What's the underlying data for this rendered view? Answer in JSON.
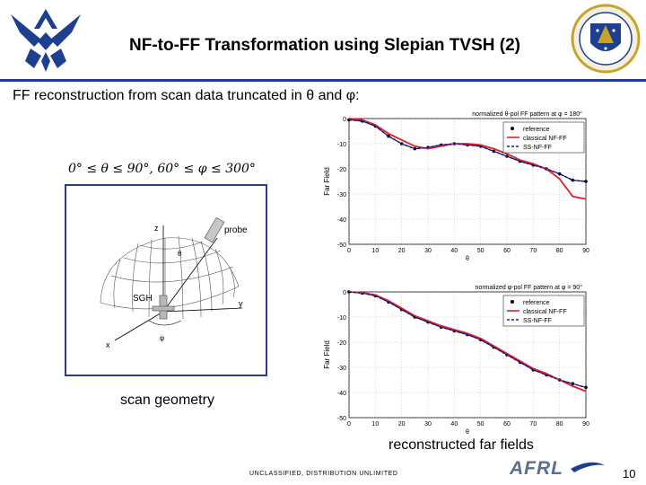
{
  "slide": {
    "title": "NF-to-FF Transformation using Slepian TVSH (2)",
    "subtitle": "FF reconstruction from scan data truncated in θ and φ:",
    "scan_range": "0° ≤ θ ≤ 90°, 60° ≤ φ ≤ 300°",
    "geometry_caption": "scan geometry",
    "farfield_caption": "reconstructed far fields",
    "footer": "UNCLASSIFIED, DISTRIBUTION UNLIMITED",
    "page_number": "10",
    "afrl_logo_text": "AFRL"
  },
  "geometry": {
    "label_z": "z",
    "label_y": "y",
    "label_x": "x",
    "label_probe": "probe",
    "label_sgh": "SGH",
    "label_theta": "θ",
    "label_phi": "φ"
  },
  "colors": {
    "accent": "#1d3f8f",
    "reference": "#000000",
    "classical": "#e0202a",
    "ss": "#1a1aa0"
  },
  "chart_data": [
    {
      "type": "line",
      "title": "normalized θ-pol FF pattern at φ = 180°",
      "xlabel": "θ",
      "ylabel": "Far Field",
      "xlim": [
        0,
        90
      ],
      "ylim": [
        -50,
        0
      ],
      "xticks": [
        0,
        10,
        20,
        30,
        40,
        50,
        60,
        70,
        80,
        90
      ],
      "yticks": [
        0,
        -10,
        -20,
        -30,
        -40,
        -50
      ],
      "grid": true,
      "legend": "top-right",
      "series": [
        {
          "name": "reference",
          "style": "marker",
          "x": [
            0,
            5,
            10,
            15,
            20,
            25,
            30,
            35,
            40,
            45,
            50,
            55,
            60,
            65,
            70,
            75,
            80,
            85,
            90
          ],
          "values": [
            -0.5,
            -1,
            -3,
            -7,
            -10,
            -12,
            -11.5,
            -10.5,
            -10,
            -10.5,
            -11,
            -13,
            -15,
            -17,
            -18.5,
            -20,
            -22,
            -24.5,
            -25
          ]
        },
        {
          "name": "classical NF-FF",
          "style": "solid",
          "x": [
            0,
            5,
            10,
            15,
            20,
            25,
            30,
            35,
            40,
            45,
            50,
            55,
            60,
            65,
            70,
            75,
            80,
            85,
            90
          ],
          "values": [
            0,
            -0.5,
            -2.5,
            -6,
            -8.5,
            -11,
            -12,
            -11,
            -10,
            -10,
            -10.5,
            -12,
            -14,
            -16.5,
            -18,
            -20,
            -24,
            -31,
            -32
          ]
        },
        {
          "name": "SS-NF-FF",
          "style": "dashed",
          "x": [
            0,
            5,
            10,
            15,
            20,
            25,
            30,
            35,
            40,
            45,
            50,
            55,
            60,
            65,
            70,
            75,
            80,
            85,
            90
          ],
          "values": [
            -0.5,
            -1,
            -3,
            -7,
            -10,
            -12,
            -11.5,
            -10.5,
            -10,
            -10.5,
            -11,
            -13,
            -15,
            -17,
            -18.5,
            -20,
            -22,
            -24.5,
            -25
          ]
        }
      ]
    },
    {
      "type": "line",
      "title": "normalized φ-pol FF pattern at φ = 90°",
      "xlabel": "θ",
      "ylabel": "Far Field",
      "xlim": [
        0,
        90
      ],
      "ylim": [
        -50,
        0
      ],
      "xticks": [
        0,
        10,
        20,
        30,
        40,
        50,
        60,
        70,
        80,
        90
      ],
      "yticks": [
        0,
        -10,
        -20,
        -30,
        -40,
        -50
      ],
      "grid": true,
      "legend": "top-right",
      "series": [
        {
          "name": "reference",
          "style": "marker",
          "x": [
            0,
            5,
            10,
            15,
            20,
            25,
            30,
            35,
            40,
            45,
            50,
            55,
            60,
            65,
            70,
            75,
            80,
            85,
            90
          ],
          "values": [
            0,
            -0.5,
            -1.5,
            -4,
            -7,
            -10,
            -12,
            -14,
            -15.5,
            -17,
            -19,
            -22,
            -25,
            -28,
            -31,
            -33,
            -35,
            -36.5,
            -38
          ]
        },
        {
          "name": "classical NF-FF",
          "style": "solid",
          "x": [
            0,
            5,
            10,
            15,
            20,
            25,
            30,
            35,
            40,
            45,
            50,
            55,
            60,
            65,
            70,
            75,
            80,
            85,
            90
          ],
          "values": [
            0,
            -0.3,
            -1.2,
            -3.5,
            -6.5,
            -9.5,
            -11.5,
            -13.5,
            -15,
            -16.5,
            -18.5,
            -21.5,
            -24.5,
            -27.5,
            -30.5,
            -32.5,
            -35,
            -37.5,
            -39.5
          ]
        },
        {
          "name": "SS-NF-FF",
          "style": "dashed",
          "x": [
            0,
            5,
            10,
            15,
            20,
            25,
            30,
            35,
            40,
            45,
            50,
            55,
            60,
            65,
            70,
            75,
            80,
            85,
            90
          ],
          "values": [
            0,
            -0.5,
            -1.5,
            -4,
            -7,
            -10,
            -12,
            -14,
            -15.5,
            -17,
            -19,
            -22,
            -25,
            -28,
            -31,
            -33,
            -35,
            -36.5,
            -38
          ]
        }
      ]
    }
  ]
}
